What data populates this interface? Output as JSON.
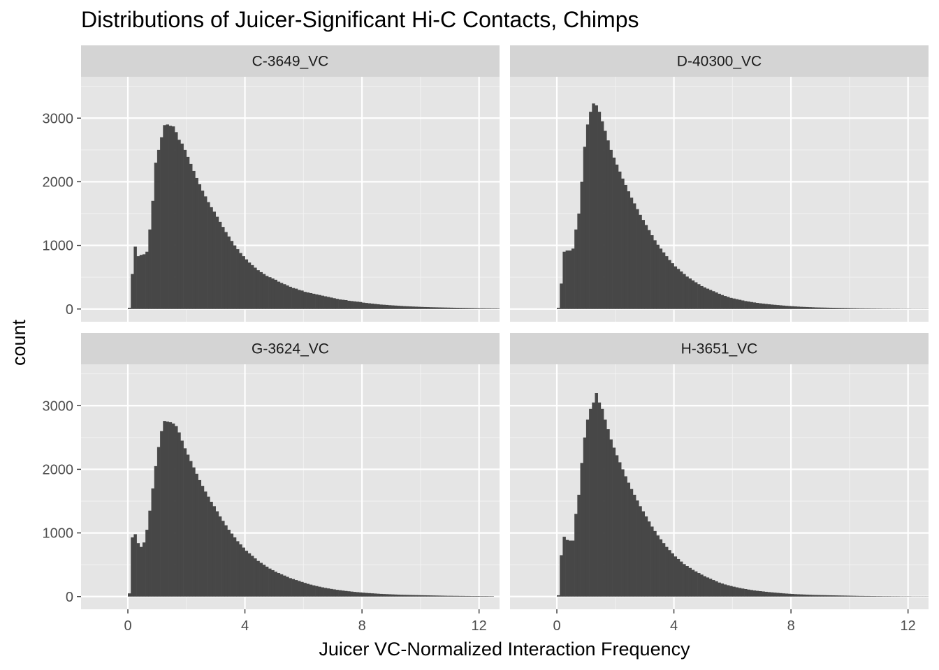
{
  "chart_data": {
    "type": "histogram",
    "title": "Distributions of Juicer-Significant Hi-C Contacts, Chimps",
    "xlabel": "Juicer VC-Normalized Interaction Frequency",
    "ylabel": "count",
    "xlim": [
      -1.6,
      12.7
    ],
    "ylim": [
      -200,
      3650
    ],
    "x_ticks": [
      0,
      4,
      8,
      12
    ],
    "y_ticks": [
      0,
      1000,
      2000,
      3000
    ],
    "x_tick_labels": [
      "0",
      "4",
      "8",
      "12"
    ],
    "y_tick_labels": [
      "0",
      "1000",
      "2000",
      "3000"
    ],
    "bin_width": 0.1,
    "bin_start": 0,
    "grid": true,
    "bar_color": "#474747",
    "panel_background": "#e5e5e5",
    "strip_background": "#d4d4d4",
    "panels": [
      {
        "name": "C-3649_VC",
        "counts": [
          20,
          550,
          980,
          830,
          850,
          860,
          900,
          1250,
          1700,
          2300,
          2500,
          2700,
          2890,
          2900,
          2880,
          2870,
          2780,
          2660,
          2600,
          2500,
          2390,
          2280,
          2170,
          2060,
          1960,
          1860,
          1770,
          1680,
          1600,
          1530,
          1450,
          1370,
          1290,
          1210,
          1140,
          1070,
          1000,
          940,
          880,
          830,
          780,
          730,
          690,
          650,
          610,
          580,
          550,
          520,
          500,
          480,
          460,
          430,
          410,
          390,
          370,
          350,
          330,
          320,
          300,
          290,
          270,
          260,
          250,
          240,
          230,
          220,
          210,
          200,
          190,
          180,
          170,
          160,
          150,
          145,
          140,
          130,
          125,
          120,
          115,
          110,
          100,
          95,
          90,
          85,
          80,
          75,
          70,
          67,
          64,
          60,
          57,
          54,
          51,
          48,
          45,
          43,
          41,
          39,
          37,
          35,
          33,
          31,
          30,
          28,
          27,
          26,
          25,
          24,
          23,
          22,
          21,
          20,
          19,
          18,
          17,
          16,
          15,
          14,
          13,
          12,
          11,
          11,
          10,
          10,
          9,
          9,
          8,
          8,
          7
        ]
      },
      {
        "name": "D-40300_VC",
        "counts": [
          20,
          400,
          900,
          920,
          920,
          950,
          1250,
          1500,
          2000,
          2550,
          2900,
          3100,
          3230,
          3200,
          3100,
          2950,
          2800,
          2650,
          2500,
          2380,
          2270,
          2160,
          2050,
          1950,
          1850,
          1750,
          1660,
          1570,
          1480,
          1400,
          1320,
          1240,
          1160,
          1080,
          1010,
          950,
          890,
          830,
          770,
          720,
          670,
          630,
          590,
          550,
          510,
          480,
          450,
          420,
          390,
          360,
          340,
          320,
          300,
          280,
          260,
          240,
          220,
          205,
          190,
          175,
          165,
          155,
          145,
          135,
          125,
          118,
          110,
          103,
          96,
          90,
          85,
          80,
          75,
          70,
          66,
          62,
          58,
          54,
          50,
          47,
          44,
          41,
          38,
          35,
          33,
          31,
          29,
          27,
          25,
          24,
          23,
          22,
          21,
          20,
          19,
          18,
          17,
          16,
          15,
          14,
          13,
          12,
          11,
          10,
          10,
          9,
          9,
          8,
          8,
          7,
          7,
          6,
          6,
          6,
          5,
          5,
          5,
          4,
          4,
          4,
          4,
          3,
          3,
          3,
          3,
          3,
          3
        ]
      },
      {
        "name": "G-3624_VC",
        "counts": [
          50,
          930,
          980,
          840,
          780,
          850,
          1050,
          1350,
          1700,
          2050,
          2350,
          2600,
          2760,
          2750,
          2740,
          2720,
          2680,
          2580,
          2450,
          2330,
          2230,
          2130,
          2030,
          1930,
          1830,
          1740,
          1650,
          1570,
          1490,
          1420,
          1340,
          1260,
          1190,
          1120,
          1050,
          990,
          930,
          870,
          820,
          770,
          720,
          680,
          640,
          600,
          560,
          530,
          500,
          470,
          440,
          415,
          390,
          370,
          350,
          330,
          310,
          290,
          275,
          260,
          245,
          230,
          215,
          200,
          188,
          176,
          165,
          155,
          145,
          136,
          128,
          120,
          113,
          106,
          100,
          94,
          88,
          83,
          78,
          73,
          69,
          65,
          61,
          57,
          54,
          51,
          48,
          45,
          42,
          40,
          38,
          36,
          34,
          32,
          30,
          28,
          27,
          26,
          25,
          24,
          23,
          22,
          21,
          20,
          19,
          18,
          17,
          16,
          15,
          14,
          13,
          12,
          12,
          11,
          11,
          10,
          10,
          9,
          9,
          8,
          8,
          8,
          7,
          7,
          7,
          6,
          6
        ]
      },
      {
        "name": "H-3651_VC",
        "counts": [
          20,
          650,
          940,
          890,
          880,
          880,
          1300,
          1600,
          2100,
          2500,
          2780,
          2950,
          3050,
          3200,
          3050,
          2950,
          2780,
          2630,
          2470,
          2340,
          2220,
          2110,
          2000,
          1890,
          1790,
          1690,
          1600,
          1510,
          1420,
          1340,
          1260,
          1180,
          1100,
          1030,
          960,
          900,
          840,
          780,
          730,
          680,
          630,
          590,
          550,
          510,
          480,
          450,
          420,
          395,
          370,
          345,
          320,
          300,
          280,
          260,
          240,
          220,
          205,
          190,
          178,
          166,
          155,
          145,
          135,
          126,
          118,
          110,
          103,
          96,
          90,
          85,
          80,
          75,
          70,
          66,
          62,
          58,
          54,
          50,
          47,
          44,
          41,
          38,
          36,
          34,
          32,
          30,
          28,
          26,
          25,
          24,
          23,
          22,
          21,
          20,
          19,
          18,
          17,
          16,
          15,
          14,
          13,
          12,
          11,
          10,
          10,
          9,
          9,
          8,
          8,
          7,
          7,
          6,
          6,
          6,
          5,
          5,
          5,
          4,
          4,
          4,
          4,
          3,
          3,
          3,
          3,
          3,
          3
        ]
      }
    ]
  }
}
